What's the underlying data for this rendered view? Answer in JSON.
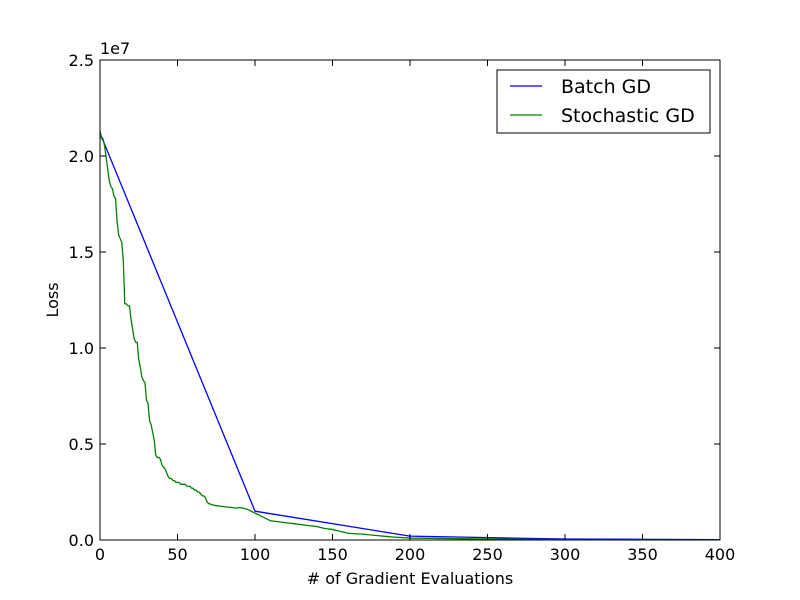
{
  "chart_data": {
    "type": "line",
    "xlabel": "# of Gradient Evaluations",
    "ylabel": "Loss",
    "y_scale_label": "1e7",
    "xlim": [
      0,
      400
    ],
    "ylim": [
      0,
      25000000
    ],
    "grid": false,
    "legend_position": "top-right",
    "x_ticks": [
      {
        "value": 0,
        "label": "0"
      },
      {
        "value": 50,
        "label": "50"
      },
      {
        "value": 100,
        "label": "100"
      },
      {
        "value": 150,
        "label": "150"
      },
      {
        "value": 200,
        "label": "200"
      },
      {
        "value": 250,
        "label": "250"
      },
      {
        "value": 300,
        "label": "300"
      },
      {
        "value": 350,
        "label": "350"
      },
      {
        "value": 400,
        "label": "400"
      }
    ],
    "y_ticks": [
      {
        "value": 0,
        "label": "0.0"
      },
      {
        "value": 5000000,
        "label": "0.5"
      },
      {
        "value": 10000000,
        "label": "1.0"
      },
      {
        "value": 15000000,
        "label": "1.5"
      },
      {
        "value": 20000000,
        "label": "2.0"
      },
      {
        "value": 25000000,
        "label": "2.5"
      }
    ],
    "series": [
      {
        "name": "Batch GD",
        "color": "#0000ff",
        "x": [
          0,
          100,
          200,
          300,
          400
        ],
        "y": [
          21200000,
          1500000,
          200000,
          50000,
          20000
        ]
      },
      {
        "name": "Stochastic GD",
        "color": "#008000",
        "x": [
          0,
          1,
          2,
          3,
          4,
          5,
          6,
          7,
          8,
          9,
          10,
          11,
          12,
          13,
          14,
          15,
          16,
          17,
          18,
          19,
          20,
          21,
          22,
          23,
          24,
          25,
          26,
          27,
          28,
          29,
          30,
          31,
          32,
          33,
          34,
          35,
          36,
          37,
          38,
          39,
          40,
          41,
          42,
          43,
          44,
          45,
          46,
          47,
          48,
          49,
          50,
          51,
          52,
          53,
          54,
          55,
          56,
          57,
          58,
          59,
          60,
          61,
          62,
          63,
          64,
          65,
          66,
          67,
          68,
          69,
          70,
          72,
          74,
          76,
          78,
          80,
          82,
          84,
          86,
          88,
          90,
          95,
          100,
          105,
          110,
          115,
          120,
          125,
          130,
          135,
          140,
          145,
          150,
          155,
          160,
          170,
          180,
          190,
          200,
          250,
          300,
          350,
          400
        ],
        "y": [
          21300000,
          20900000,
          20900000,
          20500000,
          19900000,
          19300000,
          18700000,
          18400000,
          18300000,
          17900000,
          17800000,
          16600000,
          15900000,
          15700000,
          15500000,
          14600000,
          12300000,
          12300000,
          12200000,
          12200000,
          11500000,
          11000000,
          10500000,
          10300000,
          10300000,
          9400000,
          9000000,
          8500000,
          8300000,
          8200000,
          7300000,
          7100000,
          6200000,
          6000000,
          5600000,
          5200000,
          4400000,
          4300000,
          4300000,
          4200000,
          3900000,
          3800000,
          3700000,
          3500000,
          3300000,
          3200000,
          3200000,
          3100000,
          3100000,
          3000000,
          3000000,
          3000000,
          2900000,
          2900000,
          2900000,
          2900000,
          2800000,
          2800000,
          2800000,
          2700000,
          2700000,
          2600000,
          2600000,
          2500000,
          2500000,
          2400000,
          2300000,
          2300000,
          2200000,
          2000000,
          1900000,
          1850000,
          1800000,
          1780000,
          1760000,
          1740000,
          1720000,
          1700000,
          1680000,
          1660000,
          1700000,
          1600000,
          1400000,
          1200000,
          1000000,
          950000,
          900000,
          850000,
          800000,
          750000,
          700000,
          600000,
          550000,
          450000,
          350000,
          300000,
          220000,
          150000,
          100000,
          50000,
          20000,
          10000,
          5000
        ]
      }
    ]
  }
}
